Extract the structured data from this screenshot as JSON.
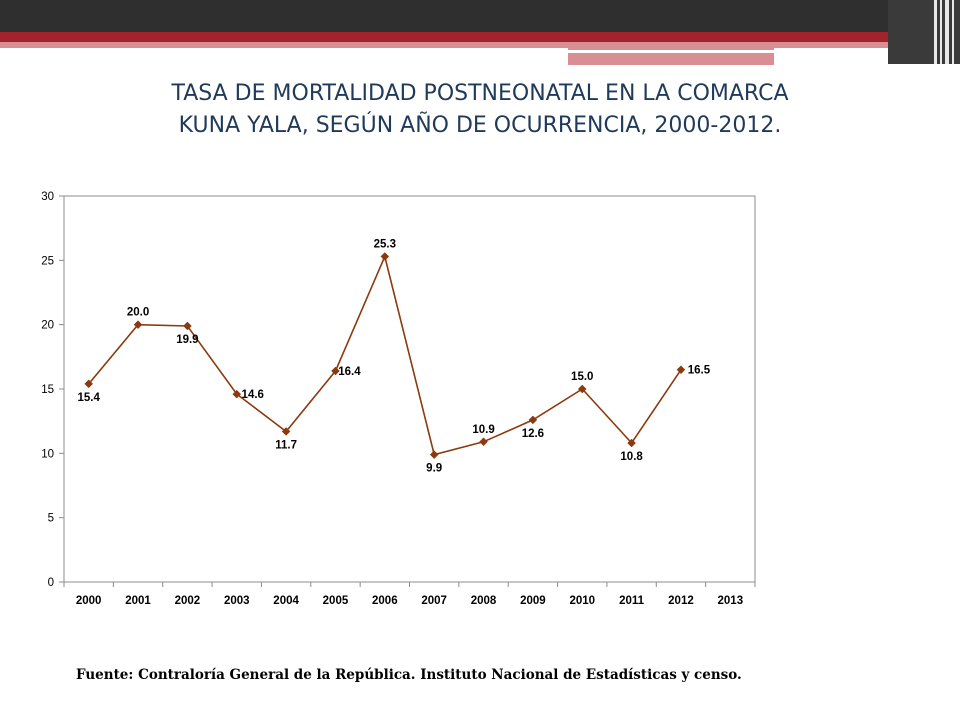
{
  "title_line1": "TASA DE MORTALIDAD POSTNEONATAL EN LA COMARCA",
  "title_line2": "KUNA YALA, SEGÚN AÑO DE OCURRENCIA, 2000-2012.",
  "source": "Fuente: Contraloría General de la República. Instituto Nacional de Estadísticas y censo.",
  "colors": {
    "series": "#8b3a0e",
    "banner_dark": "#2f2f2f",
    "banner_red": "#a3222c",
    "banner_pink": "#d88e93",
    "title": "#1f3a5a"
  },
  "chart_data": {
    "type": "line",
    "categories": [
      "2000",
      "2001",
      "2002",
      "2003",
      "2004",
      "2005",
      "2006",
      "2007",
      "2008",
      "2009",
      "2010",
      "2011",
      "2012",
      "2013"
    ],
    "series": [
      {
        "values": [
          15.4,
          20.0,
          19.9,
          14.6,
          11.7,
          16.4,
          25.3,
          9.9,
          10.9,
          12.6,
          15.0,
          10.8,
          16.5,
          null
        ]
      }
    ],
    "data_labels": [
      "15.4",
      "20.0",
      "19.9",
      "14.6",
      "11.7",
      "16.4",
      "25.3",
      "9.9",
      "10.9",
      "12.6",
      "15.0",
      "10.8",
      "16.5"
    ],
    "yticks": [
      "0",
      "5",
      "10",
      "15",
      "20",
      "25",
      "30"
    ],
    "ylim": [
      0,
      30
    ],
    "grid": false,
    "legend": "none",
    "marker": "diamond"
  }
}
